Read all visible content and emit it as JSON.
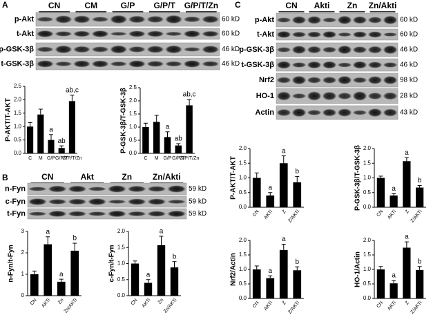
{
  "panels": [
    {
      "label": "A",
      "lanes": [
        "CN",
        "CM",
        "G/P",
        "G/P/T",
        "G/P/T/Zn"
      ],
      "rows": [
        {
          "name": "p-Akt",
          "kd": "60 kD"
        },
        {
          "name": "t-Akt",
          "kd": "60 kD"
        },
        {
          "name": "p-GSK-3β",
          "kd": "46 kD"
        },
        {
          "name": "t-GSK-3β",
          "kd": "46 kD"
        }
      ]
    },
    {
      "label": "B",
      "lanes": [
        "CN",
        "Akt",
        "Zn",
        "Zn/Akti"
      ],
      "rows": [
        {
          "name": "n-Fyn",
          "kd": "59 kD"
        },
        {
          "name": "c-Fyn",
          "kd": "59 kD"
        },
        {
          "name": "t-Fyn",
          "kd": "59 kD"
        }
      ]
    },
    {
      "label": "C",
      "lanes": [
        "CN",
        "Akti",
        "Zn",
        "Zn/Akti"
      ],
      "rows": [
        {
          "name": "p-Akt",
          "kd": "60 kD"
        },
        {
          "name": "t-Akt",
          "kd": "60 kD"
        },
        {
          "name": "p-GSK-3β",
          "kd": "46 kD"
        },
        {
          "name": "t-GSK-3β",
          "kd": "46 kD"
        },
        {
          "name": "Nrf2",
          "kd": "98 kD"
        },
        {
          "name": "HO-1",
          "kd": "28 kD"
        },
        {
          "name": "Actin",
          "kd": "43 kD"
        }
      ]
    }
  ],
  "chart_data": [
    {
      "type": "bar",
      "y_label": "P-AKT/T-AKT",
      "categories": [
        "C",
        "M",
        "G/P",
        "G/P/T",
        "G/P/T/Zn"
      ],
      "values": [
        1.0,
        1.45,
        0.5,
        0.2,
        1.95
      ],
      "errors": [
        0.15,
        0.2,
        0.2,
        0.08,
        0.22
      ],
      "letters": [
        null,
        null,
        "a",
        "ab",
        "ab,c"
      ],
      "color": "#000000",
      "ylim": [
        0,
        2.5
      ],
      "yticks": [
        {
          "value": 0,
          "label": "0.0"
        },
        {
          "value": 0.5,
          "label": "0.5"
        },
        {
          "value": 1,
          "label": "1.0"
        },
        {
          "value": 1.5,
          "label": "1.5"
        },
        {
          "value": 2,
          "label": "2.0"
        },
        {
          "value": 2.5,
          "label": "2.5"
        }
      ]
    },
    {
      "type": "bar",
      "y_label": "P-GSK-3β/T-GSK-3β",
      "categories": [
        "C",
        "M",
        "G/P",
        "G/P/T",
        "G/P/T/Zn"
      ],
      "values": [
        1.0,
        1.2,
        0.62,
        0.3,
        1.83
      ],
      "errors": [
        0.15,
        0.25,
        0.2,
        0.07,
        0.22
      ],
      "letters": [
        null,
        null,
        "a",
        "ab",
        "ab,c"
      ],
      "color": "#000000",
      "ylim": [
        0,
        2.5
      ],
      "yticks": [
        {
          "value": 0,
          "label": "0.0"
        },
        {
          "value": 0.5,
          "label": "0.5"
        },
        {
          "value": 1,
          "label": "1.0"
        },
        {
          "value": 1.5,
          "label": "1.5"
        },
        {
          "value": 2,
          "label": "2.0"
        },
        {
          "value": 2.5,
          "label": "2.5"
        }
      ]
    },
    {
      "type": "bar",
      "y_label": "n-Fyn/t-Fyn",
      "categories": [
        "CN",
        "AKTi",
        "Zn",
        "Zn/AKTi"
      ],
      "values": [
        1.0,
        2.4,
        0.65,
        2.1
      ],
      "errors": [
        0.15,
        0.35,
        0.12,
        0.35
      ],
      "letters": [
        null,
        "a",
        "a",
        "b"
      ],
      "color": "#000000",
      "ylim": [
        0,
        3
      ],
      "yticks": [
        0,
        1,
        2,
        3
      ]
    },
    {
      "type": "bar",
      "y_label": "c-Fyn/t-Fyn",
      "categories": [
        "CN",
        "AKTi",
        "Zn",
        "Zn/AKTi"
      ],
      "values": [
        1.0,
        0.4,
        1.57,
        0.88
      ],
      "errors": [
        0.08,
        0.1,
        0.28,
        0.18
      ],
      "letters": [
        null,
        "a",
        "a",
        "b"
      ],
      "color": "#000000",
      "ylim": [
        0,
        2
      ],
      "yticks": [
        {
          "value": 0,
          "label": "0.0"
        },
        {
          "value": 0.5,
          "label": "0.5"
        },
        {
          "value": 1,
          "label": "1.0"
        },
        {
          "value": 1.5,
          "label": "1.5"
        },
        {
          "value": 2,
          "label": "2.0"
        }
      ]
    },
    {
      "type": "bar",
      "y_label": "P-AKT/T-AKT",
      "categories": [
        "CN",
        "AKTi",
        "Z",
        "Z/AKTi"
      ],
      "values": [
        1.0,
        0.4,
        1.5,
        0.85
      ],
      "errors": [
        0.17,
        0.1,
        0.25,
        0.2
      ],
      "letters": [
        null,
        "a",
        "a",
        "b"
      ],
      "color": "#000000",
      "ylim": [
        0,
        2
      ],
      "yticks": [
        {
          "value": 0,
          "label": "0.0"
        },
        {
          "value": 0.5,
          "label": "0.5"
        },
        {
          "value": 1,
          "label": "1.0"
        },
        {
          "value": 1.5,
          "label": "1.5"
        },
        {
          "value": 2,
          "label": "2.0"
        }
      ]
    },
    {
      "type": "bar",
      "y_label": "P-GSK-3β/T-GSK-3β",
      "categories": [
        "CN",
        "AKTi",
        "Z",
        "Z/AKTi"
      ],
      "values": [
        1.0,
        0.4,
        1.57,
        0.67
      ],
      "errors": [
        0.06,
        0.06,
        0.12,
        0.07
      ],
      "letters": [
        null,
        "a",
        "a",
        "b"
      ],
      "color": "#000000",
      "ylim": [
        0,
        2
      ],
      "yticks": [
        {
          "value": 0,
          "label": "0.0"
        },
        {
          "value": 0.5,
          "label": "0.5"
        },
        {
          "value": 1,
          "label": "1.0"
        },
        {
          "value": 1.5,
          "label": "1.5"
        },
        {
          "value": 2,
          "label": "2.0"
        }
      ]
    },
    {
      "type": "bar",
      "y_label": "Nrf2/Actin",
      "categories": [
        "CN",
        "AKTi",
        "Z",
        "Z/AKTi"
      ],
      "values": [
        1.0,
        0.7,
        1.67,
        0.97
      ],
      "errors": [
        0.12,
        0.08,
        0.2,
        0.12
      ],
      "letters": [
        null,
        "a",
        "a",
        "b"
      ],
      "color": "#000000",
      "ylim": [
        0,
        2
      ],
      "yticks": [
        {
          "value": 0,
          "label": "0.0"
        },
        {
          "value": 0.5,
          "label": "0.5"
        },
        {
          "value": 1,
          "label": "1.0"
        },
        {
          "value": 1.5,
          "label": "1.5"
        },
        {
          "value": 2,
          "label": "2.0"
        }
      ]
    },
    {
      "type": "bar",
      "y_label": "HO-1/Actin",
      "categories": [
        "CN",
        "AKTi",
        "Z",
        "Z/AKTi"
      ],
      "values": [
        1.0,
        0.52,
        1.75,
        0.98
      ],
      "errors": [
        0.1,
        0.1,
        0.2,
        0.12
      ],
      "letters": [
        null,
        "a",
        "a",
        "b"
      ],
      "color": "#000000",
      "ylim": [
        0,
        2
      ],
      "yticks": [
        {
          "value": 0,
          "label": "0.0"
        },
        {
          "value": 0.5,
          "label": "0.5"
        },
        {
          "value": 1,
          "label": "1.0"
        },
        {
          "value": 1.5,
          "label": "1.5"
        },
        {
          "value": 2,
          "label": "2.0"
        }
      ]
    }
  ]
}
